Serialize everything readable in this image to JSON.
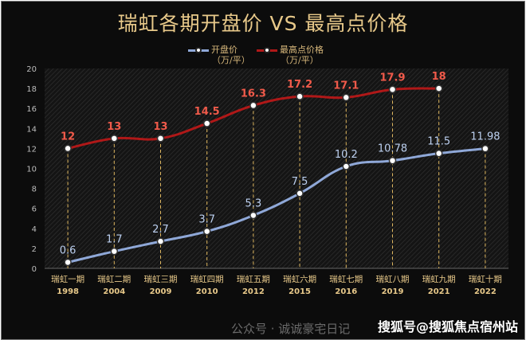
{
  "chart_data": {
    "type": "line",
    "title": "瑞虹各期开盘价 VS 最高点价格",
    "categories": [
      "瑞虹一期",
      "瑞虹二期",
      "瑞虹三期",
      "瑞虹四期",
      "瑞虹五期",
      "瑞虹六期",
      "瑞虹七期",
      "瑞虹八期",
      "瑞虹九期",
      "瑞虹十期"
    ],
    "category_years": [
      "1998",
      "2004",
      "2009",
      "2010",
      "2012",
      "2015",
      "2016",
      "2019",
      "2021",
      "2022"
    ],
    "series": [
      {
        "name": "开盘价",
        "unit": "（万/平）",
        "color": "#8fa8d8",
        "label_color": "#bcd0f0",
        "values": [
          0.6,
          1.7,
          2.7,
          3.7,
          5.3,
          7.5,
          10.2,
          10.78,
          11.5,
          11.98
        ],
        "labels": [
          "0.6",
          "1.7",
          "2.7",
          "3.7",
          "5.3",
          "7.5",
          "10.2",
          "10.78",
          "11.5",
          "11.98"
        ]
      },
      {
        "name": "最高点价格",
        "unit": "（万/平）",
        "color": "#b01818",
        "label_color": "#f05a4a",
        "values": [
          12,
          13,
          13,
          14.5,
          16.3,
          17.2,
          17.1,
          17.9,
          18,
          null
        ],
        "labels": [
          "12",
          "13",
          "13",
          "14.5",
          "16.3",
          "17.2",
          "17.1",
          "17.9",
          "18",
          ""
        ]
      }
    ],
    "ylim": [
      0,
      20
    ],
    "yticks": [
      "0",
      "2",
      "4",
      "6",
      "8",
      "10",
      "12",
      "14",
      "16",
      "18",
      "20"
    ],
    "grid": false,
    "legend": "top-center",
    "colors": {
      "background": "#0c0c0c",
      "text_gold": "#e8c98a",
      "drop_line": "#e0b860"
    }
  },
  "watermark": {
    "behind": "公众号 · 诚诚豪宅日记",
    "front": "搜狐号@搜狐焦点宿州站"
  }
}
